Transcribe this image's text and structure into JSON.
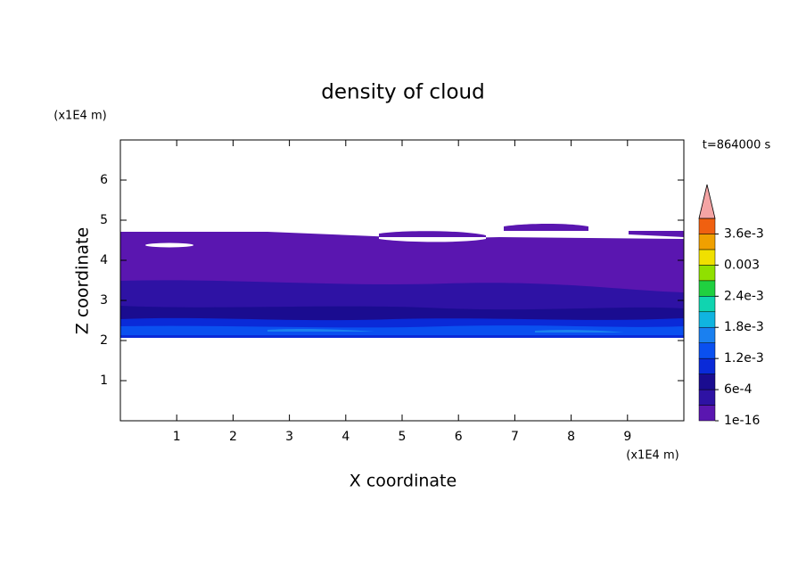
{
  "chart_data": {
    "type": "contour",
    "title": "density of cloud",
    "x_label": "X coordinate",
    "y_label": "Z coordinate",
    "x_unit": "(x1E4 m)",
    "y_unit": "(x1E4 m)",
    "annotation": "t=864000 s",
    "xlim": [
      0,
      10
    ],
    "ylim": [
      0,
      7
    ],
    "xticks": [
      1,
      2,
      3,
      4,
      5,
      6,
      7,
      8,
      9
    ],
    "yticks": [
      1,
      2,
      3,
      4,
      5,
      6
    ],
    "colorbar": {
      "clim": [
        1e-16,
        0.0039
      ],
      "ticks": [
        {
          "value": 1e-16,
          "label": "1e-16"
        },
        {
          "value": 0.0006,
          "label": "6e-4"
        },
        {
          "value": 0.0012,
          "label": "1.2e-3"
        },
        {
          "value": 0.0018,
          "label": "1.8e-3"
        },
        {
          "value": 0.0024,
          "label": "2.4e-3"
        },
        0.003,
        {
          "value": 0.0036,
          "label": "3.6e-3"
        }
      ],
      "colors": [
        "#5a16b0",
        "#2e12a4",
        "#1a0c90",
        "#0a2ad8",
        "#0a50f0",
        "#1a80f0",
        "#10b4e0",
        "#10d4b0",
        "#20d040",
        "#90e000",
        "#f0e000",
        "#f0a000",
        "#f06010"
      ],
      "extend_color": "#f4a4a4"
    }
  }
}
